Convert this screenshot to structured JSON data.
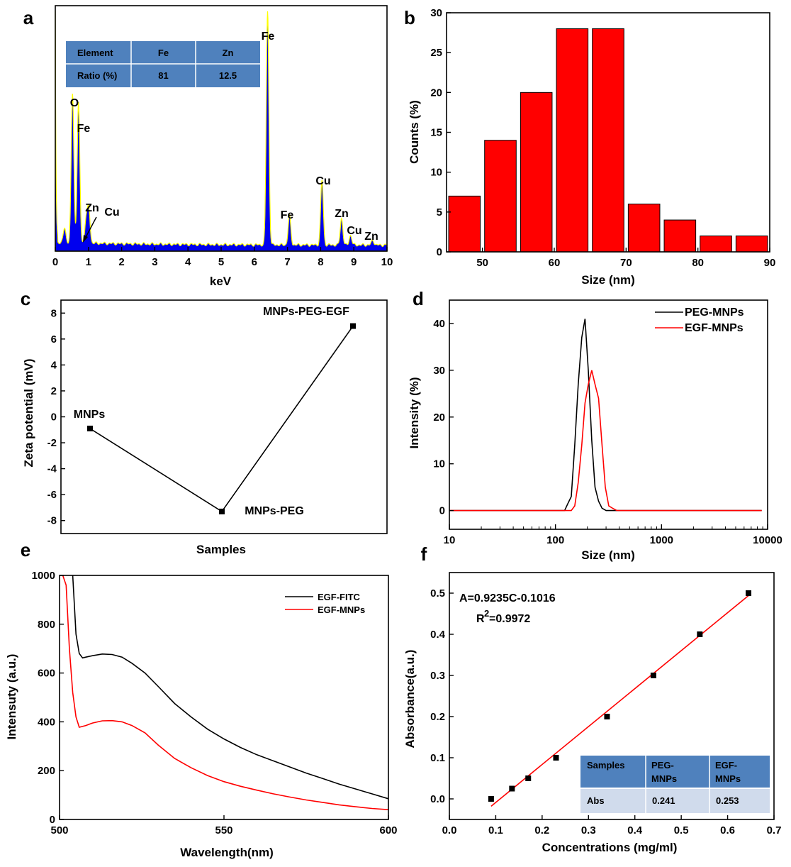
{
  "chart_data": [
    {
      "panel": "a",
      "type": "area",
      "xlabel": "keV",
      "ylabel": "",
      "xlim": [
        0,
        10
      ],
      "x_ticks": [
        "0",
        "1",
        "2",
        "3",
        "4",
        "5",
        "6",
        "7",
        "8",
        "9",
        "10"
      ],
      "colors": {
        "fill": "#0000ee",
        "edge": "#ffff00"
      },
      "peaks": [
        {
          "x": 0.28,
          "y": 0.06
        },
        {
          "x": 0.52,
          "y": 0.62
        },
        {
          "x": 0.7,
          "y": 0.58
        },
        {
          "x": 0.93,
          "y": 0.1
        },
        {
          "x": 1.01,
          "y": 0.14
        },
        {
          "x": 6.4,
          "y": 0.97
        },
        {
          "x": 7.06,
          "y": 0.12
        },
        {
          "x": 8.04,
          "y": 0.27
        },
        {
          "x": 8.63,
          "y": 0.11
        },
        {
          "x": 8.9,
          "y": 0.04
        },
        {
          "x": 9.57,
          "y": 0.02
        }
      ],
      "peak_labels": [
        "O",
        "Fe",
        "Zn",
        "Cu",
        "Fe",
        "Fe",
        "Cu",
        "Zn",
        "Cu",
        "Zn"
      ],
      "table": {
        "header": [
          "Element",
          "Fe",
          "Zn"
        ],
        "rows": [
          [
            "Ratio (%)",
            "81",
            "12.5"
          ]
        ]
      }
    },
    {
      "panel": "b",
      "type": "bar",
      "xlabel": "Size (nm)",
      "ylabel": "Counts (%)",
      "xlim": [
        45,
        90
      ],
      "ylim": [
        0,
        30
      ],
      "x_ticks": [
        "50",
        "60",
        "70",
        "80",
        "90"
      ],
      "y_ticks": [
        "0",
        "5",
        "10",
        "15",
        "20",
        "25",
        "30"
      ],
      "bar_color": "#ff0000",
      "x": [
        47.5,
        52.5,
        57.5,
        62.5,
        67.5,
        72.5,
        77.5,
        82.5,
        87.5
      ],
      "values": [
        7,
        14,
        20,
        28,
        28,
        6,
        4,
        2,
        2
      ]
    },
    {
      "panel": "c",
      "type": "line",
      "xlabel": "Samples",
      "ylabel": "Zeta potential (mV)",
      "ylim": [
        -9,
        9
      ],
      "y_ticks": [
        "8",
        "6",
        "4",
        "2",
        "0",
        "-2",
        "-4",
        "-6",
        "-8"
      ],
      "categories": [
        "MNPs",
        "MNPs-PEG",
        "MNPs-PEG-EGF"
      ],
      "values": [
        -0.9,
        -7.3,
        7.0
      ]
    },
    {
      "panel": "d",
      "type": "line",
      "xlabel": "Size (nm)",
      "ylabel": "Intensity (%)",
      "x_scale": "log",
      "xlim": [
        10,
        10000
      ],
      "ylim": [
        -4,
        45
      ],
      "x_ticks": [
        "10",
        "100",
        "1000",
        "10000"
      ],
      "y_ticks": [
        "0",
        "10",
        "20",
        "30",
        "40"
      ],
      "series": [
        {
          "name": "PEG-MNPs",
          "color": "#000000",
          "x": [
            10,
            122,
            131,
            141,
            152,
            164,
            177,
            190,
            204,
            220,
            236,
            255,
            275,
            300,
            380,
            8800
          ],
          "y": [
            0,
            0,
            1.5,
            3,
            14,
            27,
            37,
            41,
            30,
            15,
            5,
            2,
            0.5,
            0,
            0,
            0
          ]
        },
        {
          "name": "EGF-MNPs",
          "color": "#ff0000",
          "x": [
            10,
            141,
            152,
            164,
            177,
            190,
            204,
            220,
            236,
            255,
            275,
            295,
            318,
            345,
            380,
            8800
          ],
          "y": [
            0,
            0,
            1,
            6,
            14,
            23,
            27,
            30,
            27,
            24,
            14,
            5,
            1,
            0.5,
            0,
            0
          ]
        }
      ]
    },
    {
      "panel": "e",
      "type": "line",
      "xlabel": "Wavelength(nm)",
      "ylabel": "Intensuty (a.u.)",
      "xlim": [
        500,
        600
      ],
      "ylim": [
        0,
        1000
      ],
      "x_ticks": [
        "500",
        "550",
        "600"
      ],
      "y_ticks": [
        "0",
        "200",
        "400",
        "600",
        "800",
        "1000"
      ],
      "series": [
        {
          "name": "EGF-FITC",
          "color": "#000000",
          "x": [
            504,
            505,
            506,
            507,
            508,
            510,
            513,
            516,
            519,
            522,
            526,
            530,
            535,
            540,
            545,
            550,
            555,
            560,
            565,
            570,
            575,
            580,
            585,
            590,
            595,
            600
          ],
          "y": [
            1000,
            760,
            680,
            662,
            665,
            671,
            678,
            676,
            665,
            640,
            600,
            545,
            475,
            420,
            370,
            330,
            295,
            265,
            240,
            215,
            190,
            168,
            145,
            125,
            105,
            85
          ]
        },
        {
          "name": "EGF-MNPs",
          "color": "#ff0000",
          "x": [
            501,
            502,
            503,
            504,
            505,
            506,
            508,
            510,
            513,
            516,
            519,
            522,
            526,
            530,
            535,
            540,
            545,
            550,
            555,
            560,
            565,
            570,
            575,
            580,
            585,
            590,
            595,
            600
          ],
          "y": [
            1000,
            960,
            700,
            520,
            420,
            378,
            385,
            395,
            404,
            405,
            400,
            385,
            355,
            305,
            250,
            212,
            180,
            155,
            136,
            120,
            105,
            92,
            80,
            70,
            60,
            52,
            45,
            40
          ]
        }
      ]
    },
    {
      "panel": "f",
      "type": "scatter",
      "xlabel": "Concentrations (mg/ml)",
      "ylabel": "Absorbance(a.u.)",
      "xlim": [
        0.0,
        0.7
      ],
      "ylim": [
        -0.05,
        0.55
      ],
      "x_ticks": [
        "0.0",
        "0.1",
        "0.2",
        "0.3",
        "0.4",
        "0.5",
        "0.6",
        "0.7"
      ],
      "y_ticks": [
        "0.0",
        "0.1",
        "0.2",
        "0.3",
        "0.4",
        "0.5"
      ],
      "x": [
        0.09,
        0.135,
        0.17,
        0.23,
        0.34,
        0.44,
        0.54,
        0.645
      ],
      "y": [
        0.0,
        0.025,
        0.05,
        0.1,
        0.2,
        0.3,
        0.4,
        0.5
      ],
      "fit": {
        "x": [
          0.09,
          0.645
        ],
        "y": [
          -0.018,
          0.494
        ],
        "color": "#ff0000"
      },
      "equation": "A=0.9235C-0.1016",
      "r2_text": "R",
      "r2_sup": "2",
      "r2_value": "=0.9972",
      "table": {
        "header": [
          "Samples",
          "PEG-",
          "EGF-"
        ],
        "header2": [
          "",
          "MNPs",
          "MNPs"
        ],
        "rows": [
          [
            "Abs",
            "0.241",
            "0.253"
          ]
        ]
      }
    }
  ]
}
